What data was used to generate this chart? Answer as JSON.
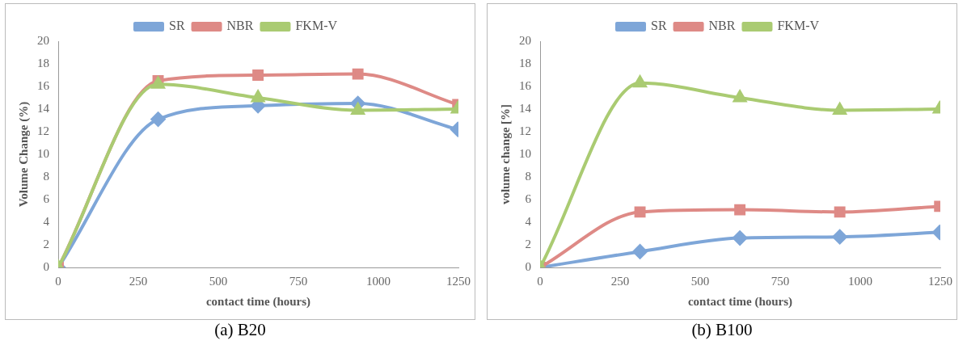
{
  "chart_data": [
    {
      "type": "line",
      "title": "(a) B20",
      "xlabel": "contact time (hours)",
      "ylabel": "Volume Change (%)",
      "x": [
        0,
        312,
        624,
        936,
        1248
      ],
      "xlim": [
        0,
        1250
      ],
      "xticks": [
        0,
        250,
        500,
        750,
        1000,
        1250
      ],
      "ylim": [
        0,
        20
      ],
      "yticks": [
        0,
        2,
        4,
        6,
        8,
        10,
        12,
        14,
        16,
        18,
        20
      ],
      "grid": false,
      "legend": "top",
      "series": [
        {
          "name": "SR",
          "color": "#7ea6d8",
          "marker": "diamond",
          "values": [
            0,
            13.1,
            14.3,
            14.5,
            12.2
          ]
        },
        {
          "name": "NBR",
          "color": "#de8a86",
          "marker": "square",
          "values": [
            0,
            16.5,
            17.0,
            17.1,
            14.4
          ]
        },
        {
          "name": "FKM-V",
          "color": "#aacb72",
          "marker": "triangle",
          "values": [
            0,
            16.2,
            15.0,
            13.9,
            14.0
          ]
        }
      ]
    },
    {
      "type": "line",
      "title": "(b) B100",
      "xlabel": "contact time (hours)",
      "ylabel": "volume change [%]",
      "x": [
        0,
        312,
        624,
        936,
        1248
      ],
      "xlim": [
        0,
        1250
      ],
      "xticks": [
        0,
        250,
        500,
        750,
        1000,
        1250
      ],
      "ylim": [
        0,
        20
      ],
      "yticks": [
        0,
        2,
        4,
        6,
        8,
        10,
        12,
        14,
        16,
        18,
        20
      ],
      "grid": false,
      "legend": "top",
      "series": [
        {
          "name": "SR",
          "color": "#7ea6d8",
          "marker": "diamond",
          "values": [
            0,
            1.4,
            2.6,
            2.7,
            3.1
          ]
        },
        {
          "name": "NBR",
          "color": "#de8a86",
          "marker": "square",
          "values": [
            0,
            4.9,
            5.1,
            4.9,
            5.4
          ]
        },
        {
          "name": "FKM-V",
          "color": "#aacb72",
          "marker": "triangle",
          "values": [
            0,
            16.3,
            15.0,
            13.9,
            14.0
          ]
        }
      ]
    }
  ]
}
